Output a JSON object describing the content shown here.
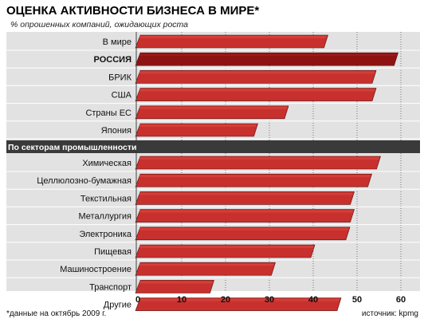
{
  "chart_data": {
    "type": "bar",
    "orientation": "horizontal",
    "title": "ОЦЕНКА АКТИВНОСТИ БИЗНЕСА В МИРЕ*",
    "subtitle": "% опрошенных компаний, ожидающих роста",
    "xlim": [
      0,
      60
    ],
    "xticks": [
      0,
      10,
      20,
      30,
      40,
      50,
      60
    ],
    "grid": true,
    "groups": [
      {
        "label": "",
        "categories": [
          "В мире",
          "РОССИЯ",
          "БРИК",
          "США",
          "Страны ЕС",
          "Япония"
        ],
        "values": [
          43,
          59,
          54,
          54,
          34,
          27
        ],
        "highlight": "РОССИЯ"
      },
      {
        "label": "По секторам промышленности",
        "categories": [
          "Химическая",
          "Целлюлозно-бумажная",
          "Текстильная",
          "Металлургия",
          "Электроника",
          "Пищевая",
          "Машиностроение",
          "Транспорт",
          "Другие"
        ],
        "values": [
          55,
          53,
          49,
          49,
          48,
          40,
          31,
          17,
          46
        ]
      }
    ],
    "footnote": "*данные на октябрь 2009 г.",
    "source": "источник: kpmg"
  },
  "colors": {
    "bar": "#c8302d",
    "bar_top": "#d8443f",
    "bar_highlight": "#8e1212",
    "bar_highlight_top": "#a11c1c",
    "background": "#e2e2e2",
    "separator": "#555555",
    "section_bar": "#3a3a3a"
  }
}
